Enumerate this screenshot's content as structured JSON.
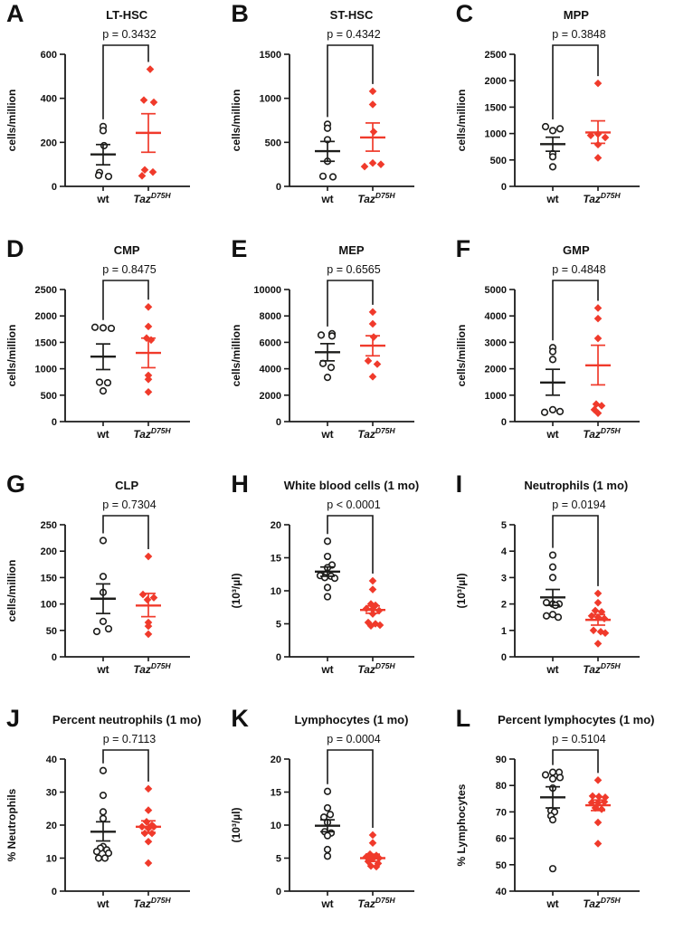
{
  "figure": {
    "groups": {
      "wt": {
        "label": "wt",
        "marker": "open-circle",
        "color": "#1d1d1b"
      },
      "taz": {
        "label_base": "Taz",
        "label_sup": "D75H",
        "marker": "filled-diamond",
        "color": "#f03a2b"
      }
    },
    "colors": {
      "axis": "#1a1a1a",
      "text": "#111111",
      "background": "#ffffff"
    }
  },
  "chart_data": [
    {
      "panel": "A",
      "type": "scatter",
      "title": "LT-HSC",
      "p_label": "p = 0.3432",
      "ylabel": "cells/million",
      "ylim": [
        0,
        600
      ],
      "yticks": [
        0,
        200,
        400,
        600
      ],
      "series": [
        {
          "group": "wt",
          "mean": 145,
          "sem": [
            98,
            190
          ],
          "values": [
            272,
            253,
            185,
            63,
            50,
            45
          ],
          "jitter": [
            0,
            0,
            1,
            -4,
            -5,
            6
          ]
        },
        {
          "group": "taz",
          "mean": 243,
          "sem": [
            155,
            330
          ],
          "values": [
            532,
            392,
            382,
            75,
            65,
            48
          ],
          "jitter": [
            2,
            -5,
            6,
            -4,
            5,
            -7
          ]
        }
      ]
    },
    {
      "panel": "B",
      "type": "scatter",
      "title": "ST-HSC",
      "p_label": "p = 0.4342",
      "ylabel": "cells/million",
      "ylim": [
        0,
        1500
      ],
      "yticks": [
        0,
        500,
        1000,
        1500
      ],
      "series": [
        {
          "group": "wt",
          "mean": 400,
          "sem": [
            285,
            510
          ],
          "values": [
            705,
            660,
            530,
            285,
            115,
            108
          ],
          "jitter": [
            0,
            0,
            0,
            0,
            -5,
            6
          ]
        },
        {
          "group": "taz",
          "mean": 555,
          "sem": [
            400,
            720
          ],
          "values": [
            1080,
            930,
            620,
            265,
            250,
            225
          ],
          "jitter": [
            0,
            0,
            1,
            0,
            9,
            -9
          ]
        }
      ]
    },
    {
      "panel": "C",
      "type": "scatter",
      "title": "MPP",
      "p_label": "p = 0.3848",
      "ylabel": "cells/million",
      "ylim": [
        0,
        2500
      ],
      "yticks": [
        0,
        500,
        1000,
        1500,
        2000,
        2500
      ],
      "series": [
        {
          "group": "wt",
          "mean": 800,
          "sem": [
            665,
            930
          ],
          "values": [
            1130,
            1090,
            1055,
            620,
            560,
            370
          ],
          "jitter": [
            -8,
            8,
            0,
            0,
            0,
            0
          ]
        },
        {
          "group": "taz",
          "mean": 1020,
          "sem": [
            815,
            1240
          ],
          "values": [
            1950,
            990,
            965,
            925,
            790,
            540
          ],
          "jitter": [
            0,
            0,
            -8,
            8,
            0,
            0
          ]
        }
      ]
    },
    {
      "panel": "D",
      "type": "scatter",
      "title": "CMP",
      "p_label": "p = 0.8475",
      "ylabel": "cells/million",
      "ylim": [
        0,
        2500
      ],
      "yticks": [
        0,
        500,
        1000,
        1500,
        2000,
        2500
      ],
      "series": [
        {
          "group": "wt",
          "mean": 1230,
          "sem": [
            985,
            1470
          ],
          "values": [
            1785,
            1775,
            1765,
            745,
            735,
            580
          ],
          "jitter": [
            -9,
            0,
            9,
            -4,
            5,
            0
          ]
        },
        {
          "group": "taz",
          "mean": 1300,
          "sem": [
            1020,
            1580
          ],
          "values": [
            2170,
            1800,
            1580,
            1545,
            875,
            800,
            560
          ],
          "jitter": [
            0,
            0,
            -2,
            3,
            0,
            0,
            0
          ]
        }
      ]
    },
    {
      "panel": "E",
      "type": "scatter",
      "title": "MEP",
      "p_label": "p = 0.6565",
      "ylabel": "cells/million",
      "ylim": [
        0,
        10000
      ],
      "yticks": [
        0,
        2000,
        4000,
        6000,
        8000,
        10000
      ],
      "series": [
        {
          "group": "wt",
          "mean": 5250,
          "sem": [
            4600,
            5900
          ],
          "values": [
            6650,
            6550,
            6480,
            4400,
            4100,
            3350
          ],
          "jitter": [
            5,
            -7,
            5,
            -5,
            4,
            0
          ]
        },
        {
          "group": "taz",
          "mean": 5750,
          "sem": [
            4980,
            6500
          ],
          "values": [
            8300,
            7400,
            6400,
            4600,
            4350,
            3400
          ],
          "jitter": [
            0,
            0,
            1,
            -5,
            5,
            0
          ]
        }
      ]
    },
    {
      "panel": "F",
      "type": "scatter",
      "title": "GMP",
      "p_label": "p = 0.4848",
      "ylabel": "cells/million",
      "ylim": [
        0,
        5000
      ],
      "yticks": [
        0,
        1000,
        2000,
        3000,
        4000,
        5000
      ],
      "series": [
        {
          "group": "wt",
          "mean": 1480,
          "sem": [
            1000,
            1980
          ],
          "values": [
            2800,
            2650,
            2350,
            450,
            380,
            350
          ],
          "jitter": [
            0,
            0,
            0,
            0,
            8,
            -9
          ]
        },
        {
          "group": "taz",
          "mean": 2130,
          "sem": [
            1390,
            2890
          ],
          "values": [
            4300,
            3900,
            3150,
            660,
            600,
            450,
            320
          ],
          "jitter": [
            0,
            0,
            0,
            -2,
            4,
            -4,
            0
          ]
        }
      ]
    },
    {
      "panel": "G",
      "type": "scatter",
      "title": "CLP",
      "p_label": "p = 0.7304",
      "ylabel": "cells/million",
      "ylim": [
        0,
        250
      ],
      "yticks": [
        0,
        50,
        100,
        150,
        200,
        250
      ],
      "series": [
        {
          "group": "wt",
          "mean": 110,
          "sem": [
            82,
            138
          ],
          "values": [
            220,
            152,
            122,
            67,
            53,
            48
          ],
          "jitter": [
            0,
            0,
            0,
            0,
            6,
            -7
          ]
        },
        {
          "group": "taz",
          "mean": 97,
          "sem": [
            76,
            120
          ],
          "values": [
            190,
            118,
            112,
            108,
            65,
            58,
            43
          ],
          "jitter": [
            0,
            -6,
            6,
            -1,
            0,
            0,
            0
          ]
        }
      ]
    },
    {
      "panel": "H",
      "type": "scatter",
      "title": "White blood cells (1 mo)",
      "p_label": "p < 0.0001",
      "ylabel": "(10³/µl)",
      "ylim": [
        0,
        20
      ],
      "yticks": [
        0,
        5,
        10,
        15,
        20
      ],
      "series": [
        {
          "group": "wt",
          "mean": 12.9,
          "sem": [
            12.2,
            13.6
          ],
          "values": [
            17.5,
            15.2,
            13.9,
            13.5,
            12.6,
            12.3,
            12.2,
            12.0,
            11.9,
            10.5,
            9.1
          ],
          "jitter": [
            0,
            0,
            5,
            0,
            -1,
            -8,
            4,
            -3,
            8,
            0,
            0
          ]
        },
        {
          "group": "taz",
          "mean": 7.1,
          "sem": [
            6.6,
            7.7
          ],
          "values": [
            11.5,
            10.2,
            8.0,
            7.8,
            7.3,
            7.2,
            7.0,
            6.5,
            5.2,
            5.0,
            4.8,
            4.7
          ],
          "jitter": [
            0,
            0,
            -2,
            3,
            -7,
            0,
            7,
            0,
            -5,
            3,
            8,
            -2
          ]
        }
      ]
    },
    {
      "panel": "I",
      "type": "scatter",
      "title": "Neutrophils (1 mo)",
      "p_label": "p = 0.0194",
      "ylabel": "(10³/µl)",
      "ylim": [
        0,
        5
      ],
      "yticks": [
        0,
        1,
        2,
        3,
        4,
        5
      ],
      "series": [
        {
          "group": "wt",
          "mean": 2.25,
          "sem": [
            1.95,
            2.55
          ],
          "values": [
            3.85,
            3.4,
            3.0,
            2.05,
            2.0,
            2.0,
            1.95,
            1.6,
            1.55,
            1.5
          ],
          "jitter": [
            0,
            0,
            0,
            -7,
            0,
            7,
            3,
            0,
            -7,
            6
          ]
        },
        {
          "group": "taz",
          "mean": 1.4,
          "sem": [
            1.2,
            1.6
          ],
          "values": [
            2.4,
            2.05,
            1.75,
            1.7,
            1.55,
            1.5,
            1.45,
            1.0,
            0.95,
            0.9,
            0.5
          ],
          "jitter": [
            0,
            0,
            -3,
            4,
            -7,
            0,
            7,
            -5,
            3,
            8,
            0
          ]
        }
      ]
    },
    {
      "panel": "J",
      "type": "scatter",
      "title": "Percent neutrophils (1 mo)",
      "p_label": "p = 0.7113",
      "ylabel": "% Neutrophils",
      "ylim": [
        0,
        40
      ],
      "yticks": [
        0,
        10,
        20,
        30,
        40
      ],
      "series": [
        {
          "group": "wt",
          "mean": 18,
          "sem": [
            15.2,
            21
          ],
          "values": [
            36.5,
            29,
            24,
            22,
            13.5,
            13,
            12.5,
            12,
            11.5,
            10,
            10
          ],
          "jitter": [
            0,
            0,
            0,
            0,
            0,
            -3,
            4,
            -7,
            6,
            -5,
            2
          ]
        },
        {
          "group": "taz",
          "mean": 19.5,
          "sem": [
            17.8,
            21.3
          ],
          "values": [
            31,
            24.5,
            21,
            20,
            19.5,
            19.5,
            19,
            17.5,
            17.5,
            15,
            8.5
          ],
          "jitter": [
            0,
            0,
            -2,
            4,
            -7,
            6,
            0,
            -4,
            4,
            0,
            0
          ]
        }
      ]
    },
    {
      "panel": "K",
      "type": "scatter",
      "title": "Lymphocytes (1 mo)",
      "p_label": "p = 0.0004",
      "ylabel": "(10³/µl)",
      "ylim": [
        0,
        20
      ],
      "yticks": [
        0,
        5,
        10,
        15,
        20
      ],
      "series": [
        {
          "group": "wt",
          "mean": 9.9,
          "sem": [
            9.0,
            10.8
          ],
          "values": [
            15.1,
            12.6,
            11.6,
            11.2,
            10.4,
            9.0,
            8.8,
            8.4,
            6.3,
            5.3
          ],
          "jitter": [
            0,
            0,
            3,
            -4,
            0,
            -3,
            4,
            0,
            0,
            0
          ]
        },
        {
          "group": "taz",
          "mean": 5.0,
          "sem": [
            4.5,
            5.6
          ],
          "values": [
            8.5,
            7.3,
            5.6,
            5.4,
            5.2,
            5.0,
            4.9,
            4.5,
            4.2,
            3.8,
            3.7
          ],
          "jitter": [
            0,
            0,
            -3,
            4,
            -7,
            7,
            0,
            -5,
            6,
            -2,
            4
          ]
        }
      ]
    },
    {
      "panel": "L",
      "type": "scatter",
      "title": "Percent lymphocytes (1 mo)",
      "p_label": "p = 0.5104",
      "ylabel": "% Lymphocytes",
      "ylim": [
        40,
        90
      ],
      "yticks": [
        40,
        50,
        60,
        70,
        80,
        90
      ],
      "series": [
        {
          "group": "wt",
          "mean": 75.5,
          "sem": [
            71.5,
            79.5
          ],
          "values": [
            85,
            85,
            84,
            83,
            82.5,
            79,
            70.5,
            70,
            68.5,
            67,
            48.5
          ],
          "jitter": [
            0,
            7,
            -8,
            8,
            0,
            0,
            -2,
            2,
            -2,
            0,
            0
          ]
        },
        {
          "group": "taz",
          "mean": 72.5,
          "sem": [
            70.5,
            74.5
          ],
          "values": [
            82,
            76,
            75.8,
            75.5,
            73.8,
            73.5,
            73.5,
            71.5,
            71,
            66,
            58
          ],
          "jitter": [
            0,
            -6,
            1,
            8,
            7,
            -7,
            0,
            -3,
            4,
            0,
            0
          ]
        }
      ]
    }
  ]
}
